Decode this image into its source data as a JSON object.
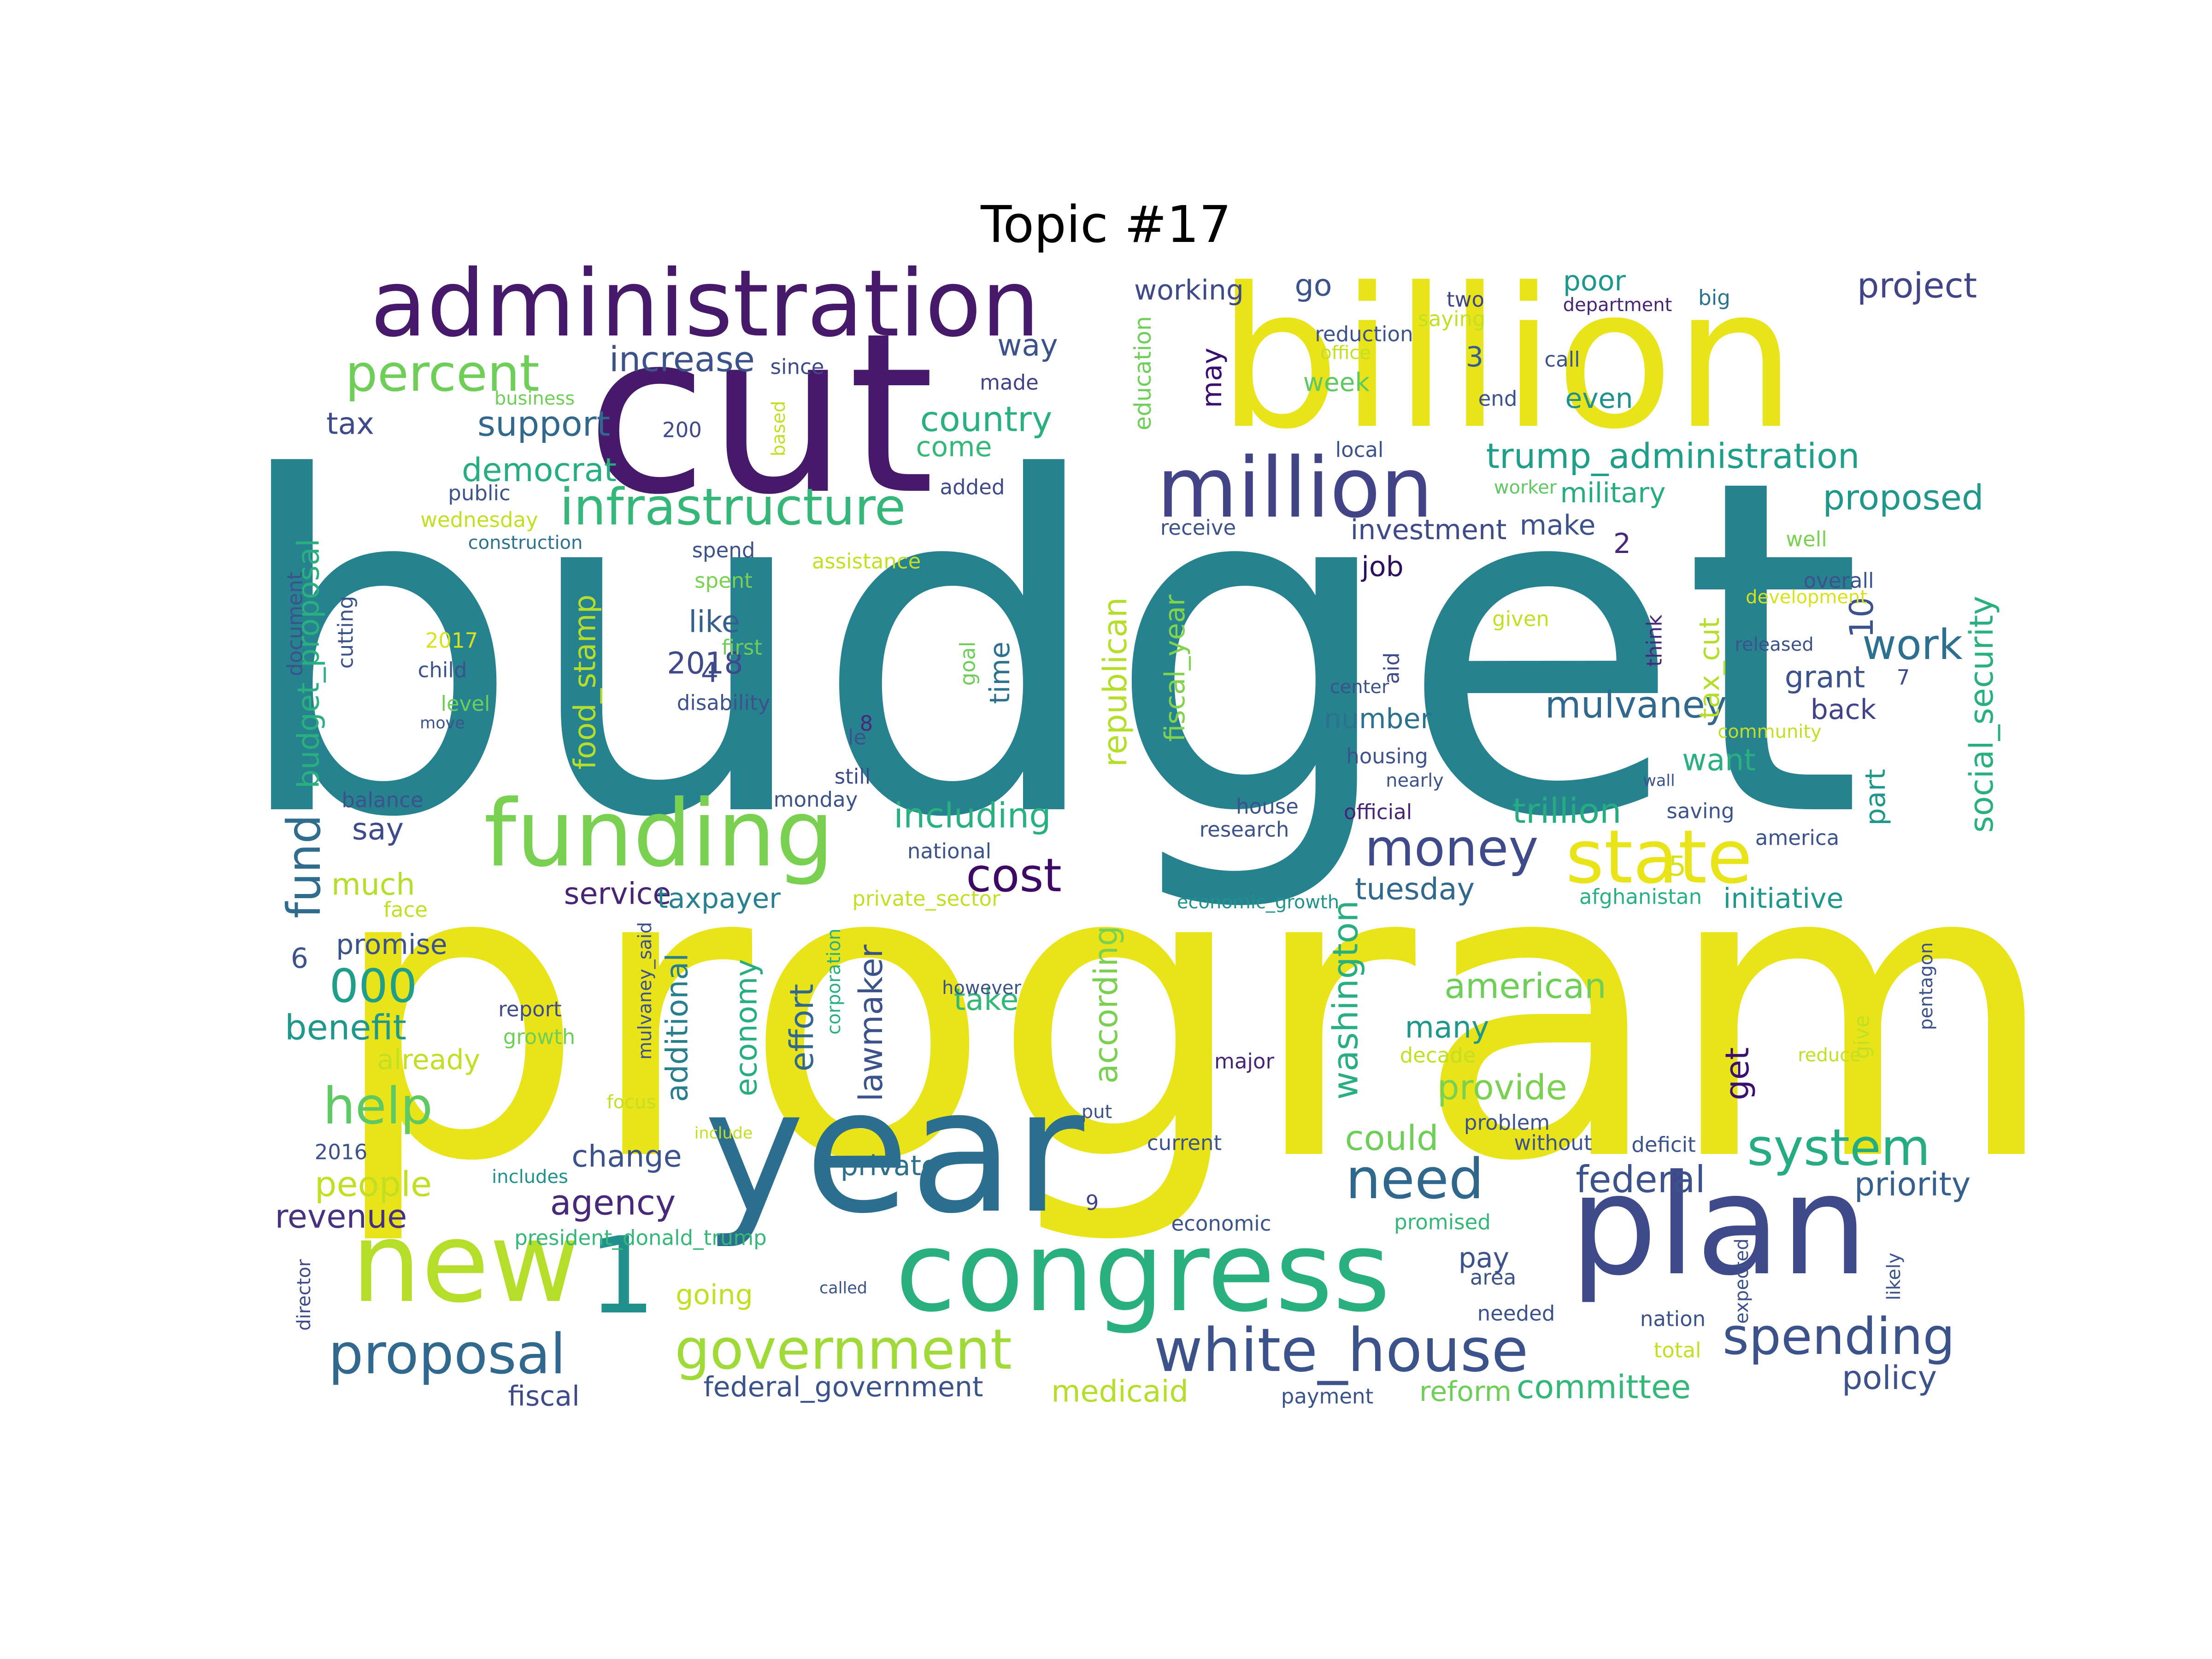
{
  "title": "Topic #17",
  "words": [
    {
      "t": "budget",
      "c": "#26828e"
    },
    {
      "t": "program",
      "c": "#e8e419"
    },
    {
      "t": "cut",
      "c": "#46196b"
    },
    {
      "t": "billion",
      "c": "#e8e419"
    },
    {
      "t": "year",
      "c": "#2c6e8e"
    },
    {
      "t": "plan",
      "c": "#3e4a89"
    },
    {
      "t": "congress",
      "c": "#2ab07f"
    },
    {
      "t": "new",
      "c": "#b5de2b"
    },
    {
      "t": "administration",
      "c": "#46196b"
    },
    {
      "t": "million",
      "c": "#414487"
    },
    {
      "t": "funding",
      "c": "#7ad151"
    },
    {
      "t": "state",
      "c": "#e8e419"
    },
    {
      "t": "infrastructure",
      "c": "#35b779"
    },
    {
      "t": "percent",
      "c": "#6ece58"
    },
    {
      "t": "1",
      "c": "#21918c"
    },
    {
      "t": "white_house",
      "c": "#3b528b"
    },
    {
      "t": "government",
      "c": "#a0da39"
    },
    {
      "t": "proposal",
      "c": "#31688e"
    },
    {
      "t": "need",
      "c": "#30678d"
    },
    {
      "t": "spending",
      "c": "#3b528b"
    },
    {
      "t": "system",
      "c": "#25ac82"
    },
    {
      "t": "money",
      "c": "#3e4a89"
    },
    {
      "t": "cost",
      "c": "#3d0965"
    },
    {
      "t": "help",
      "c": "#5ec962"
    },
    {
      "t": "000",
      "c": "#1f9e89"
    },
    {
      "t": "work",
      "c": "#2d6f8e"
    },
    {
      "t": "social_security",
      "c": "#2ab07f"
    },
    {
      "t": "trump_administration",
      "c": "#1f9e89"
    },
    {
      "t": "proposed",
      "c": "#1f988b"
    },
    {
      "t": "mulvaney",
      "c": "#31688e"
    },
    {
      "t": "fund",
      "c": "#2f6c8e"
    },
    {
      "t": "increase",
      "c": "#3b528b"
    },
    {
      "t": "support",
      "c": "#31688e"
    },
    {
      "t": "country",
      "c": "#2ab07f"
    },
    {
      "t": "project",
      "c": "#414487"
    },
    {
      "t": "federal",
      "c": "#3b528b"
    },
    {
      "t": "priority",
      "c": "#355f8d"
    },
    {
      "t": "policy",
      "c": "#3b528b"
    },
    {
      "t": "committee",
      "c": "#35b779"
    },
    {
      "t": "medicaid",
      "c": "#b5de2b"
    },
    {
      "t": "trillion",
      "c": "#25ac82"
    },
    {
      "t": "including",
      "c": "#2ab07f"
    },
    {
      "t": "american",
      "c": "#6ece58"
    },
    {
      "t": "provide",
      "c": "#7ad151"
    },
    {
      "t": "could",
      "c": "#6ece58"
    },
    {
      "t": "agency",
      "c": "#482878"
    },
    {
      "t": "people",
      "c": "#c2df23"
    },
    {
      "t": "revenue",
      "c": "#46327e"
    },
    {
      "t": "benefit",
      "c": "#1f988b"
    },
    {
      "t": "washington",
      "c": "#29af7f"
    },
    {
      "t": "lawmaker",
      "c": "#3b528b"
    },
    {
      "t": "according",
      "c": "#7ad151"
    },
    {
      "t": "effort",
      "c": "#31688e"
    },
    {
      "t": "economy",
      "c": "#27ad81"
    },
    {
      "t": "additional",
      "c": "#277f8e"
    },
    {
      "t": "republican",
      "c": "#b5de2b"
    },
    {
      "t": "fiscal_year",
      "c": "#81d34d"
    },
    {
      "t": "food_stamp",
      "c": "#b5de2b"
    },
    {
      "t": "budget_proposal",
      "c": "#2ab07f"
    },
    {
      "t": "tax_cut",
      "c": "#b5de2b"
    },
    {
      "t": "democrat",
      "c": "#27ad81"
    },
    {
      "t": "tax",
      "c": "#3e4a89"
    },
    {
      "t": "way",
      "c": "#3b528b"
    },
    {
      "t": "go",
      "c": "#3b528b"
    },
    {
      "t": "working",
      "c": "#3e4a89"
    },
    {
      "t": "poor",
      "c": "#1f988b"
    },
    {
      "t": "even",
      "c": "#21918c"
    },
    {
      "t": "military",
      "c": "#25ac82"
    },
    {
      "t": "make",
      "c": "#3b528b"
    },
    {
      "t": "investment",
      "c": "#3e4a89"
    },
    {
      "t": "job",
      "c": "#2c0f5d"
    },
    {
      "t": "like",
      "c": "#355f8d"
    },
    {
      "t": "time",
      "c": "#2c728e"
    },
    {
      "t": "2018",
      "c": "#3e4a89"
    },
    {
      "t": "number",
      "c": "#2c728e"
    },
    {
      "t": "grant",
      "c": "#3b528b"
    },
    {
      "t": "back",
      "c": "#404387"
    },
    {
      "t": "part",
      "c": "#1f988b"
    },
    {
      "t": "want",
      "c": "#2ab07f"
    },
    {
      "t": "say",
      "c": "#3e4a89"
    },
    {
      "t": "much",
      "c": "#b5de2b"
    },
    {
      "t": "service",
      "c": "#482475"
    },
    {
      "t": "taxpayer",
      "c": "#26828e"
    },
    {
      "t": "tuesday",
      "c": "#31688e"
    },
    {
      "t": "initiative",
      "c": "#1f988b"
    },
    {
      "t": "take",
      "c": "#35b779"
    },
    {
      "t": "many",
      "c": "#1f988b"
    },
    {
      "t": "get",
      "c": "#3b0f70"
    },
    {
      "t": "change",
      "c": "#3b528b"
    },
    {
      "t": "going",
      "c": "#c2df23"
    },
    {
      "t": "pay",
      "c": "#3b528b"
    },
    {
      "t": "fiscal",
      "c": "#3e4a89"
    },
    {
      "t": "federal_government",
      "c": "#3b528b"
    },
    {
      "t": "reform",
      "c": "#6ece58"
    },
    {
      "t": "promise",
      "c": "#3b528b"
    },
    {
      "t": "already",
      "c": "#c2df23"
    },
    {
      "t": "may",
      "c": "#3b0f70"
    },
    {
      "t": "week",
      "c": "#5ec962"
    },
    {
      "t": "come",
      "c": "#35b779"
    },
    {
      "t": "3",
      "c": "#355f8d"
    },
    {
      "t": "2",
      "c": "#482878"
    },
    {
      "t": "4",
      "c": "#3e4a89"
    },
    {
      "t": "10",
      "c": "#3b528b"
    },
    {
      "t": "5",
      "c": "#d8e219"
    },
    {
      "t": "6",
      "c": "#3b528b"
    },
    {
      "t": "7",
      "c": "#3e4a89"
    },
    {
      "t": "8",
      "c": "#482878"
    },
    {
      "t": "9",
      "c": "#404387"
    },
    {
      "t": "le",
      "c": "#3b528b"
    },
    {
      "t": "private",
      "c": "#2d708e"
    },
    {
      "t": "two",
      "c": "#404387"
    },
    {
      "t": "saying",
      "c": "#c2df23"
    },
    {
      "t": "department",
      "c": "#482475"
    },
    {
      "t": "big",
      "c": "#2c728e"
    },
    {
      "t": "reduction",
      "c": "#3b528b"
    },
    {
      "t": "office",
      "c": "#c2df23"
    },
    {
      "t": "call",
      "c": "#3b528b"
    },
    {
      "t": "end",
      "c": "#3b528b"
    },
    {
      "t": "education",
      "c": "#6ece58"
    },
    {
      "t": "made",
      "c": "#404387"
    },
    {
      "t": "since",
      "c": "#3e4a89"
    },
    {
      "t": "200",
      "c": "#3e4a89"
    },
    {
      "t": "based",
      "c": "#c2df23"
    },
    {
      "t": "business",
      "c": "#6ece58"
    },
    {
      "t": "local",
      "c": "#3b528b"
    },
    {
      "t": "added",
      "c": "#3e4a89"
    },
    {
      "t": "worker",
      "c": "#5ec962"
    },
    {
      "t": "public",
      "c": "#3b528b"
    },
    {
      "t": "wednesday",
      "c": "#c2df23"
    },
    {
      "t": "construction",
      "c": "#2c728e"
    },
    {
      "t": "document",
      "c": "#3b528b"
    },
    {
      "t": "cutting",
      "c": "#3b528b"
    },
    {
      "t": "receive",
      "c": "#3b528b"
    },
    {
      "t": "spend",
      "c": "#3b528b"
    },
    {
      "t": "spent",
      "c": "#7ad151"
    },
    {
      "t": "assistance",
      "c": "#c2df23"
    },
    {
      "t": "well",
      "c": "#7ad151"
    },
    {
      "t": "overall",
      "c": "#3b528b"
    },
    {
      "t": "development",
      "c": "#d8e219"
    },
    {
      "t": "think",
      "c": "#482878"
    },
    {
      "t": "given",
      "c": "#c2df23"
    },
    {
      "t": "released",
      "c": "#3b528b"
    },
    {
      "t": "aid",
      "c": "#3e4a89"
    },
    {
      "t": "center",
      "c": "#3b528b"
    },
    {
      "t": "2017",
      "c": "#d8e219"
    },
    {
      "t": "child",
      "c": "#3b528b"
    },
    {
      "t": "level",
      "c": "#6ece58"
    },
    {
      "t": "move",
      "c": "#3b528b"
    },
    {
      "t": "first",
      "c": "#6ece58"
    },
    {
      "t": "disability",
      "c": "#3b528b"
    },
    {
      "t": "goal",
      "c": "#6ece58"
    },
    {
      "t": "still",
      "c": "#3e4a89"
    },
    {
      "t": "community",
      "c": "#c2df23"
    },
    {
      "t": "wall",
      "c": "#3b528b"
    },
    {
      "t": "housing",
      "c": "#3b528b"
    },
    {
      "t": "nearly",
      "c": "#3b528b"
    },
    {
      "t": "balance",
      "c": "#3b528b"
    },
    {
      "t": "monday",
      "c": "#3b528b"
    },
    {
      "t": "house",
      "c": "#3b528b"
    },
    {
      "t": "official",
      "c": "#482475"
    },
    {
      "t": "saving",
      "c": "#3b528b"
    },
    {
      "t": "america",
      "c": "#3b528b"
    },
    {
      "t": "research",
      "c": "#3b528b"
    },
    {
      "t": "national",
      "c": "#3b528b"
    },
    {
      "t": "face",
      "c": "#c2df23"
    },
    {
      "t": "private_sector",
      "c": "#c2df23"
    },
    {
      "t": "economic_growth",
      "c": "#21918c"
    },
    {
      "t": "afghanistan",
      "c": "#2ab07f"
    },
    {
      "t": "mulvaney_said",
      "c": "#3b528b"
    },
    {
      "t": "corporation",
      "c": "#2ab07f"
    },
    {
      "t": "pentagon",
      "c": "#3b528b"
    },
    {
      "t": "give",
      "c": "#c2df23"
    },
    {
      "t": "report",
      "c": "#3e4a89"
    },
    {
      "t": "growth",
      "c": "#6ece58"
    },
    {
      "t": "however",
      "c": "#3b528b"
    },
    {
      "t": "major",
      "c": "#482475"
    },
    {
      "t": "decade",
      "c": "#c2df23"
    },
    {
      "t": "reduce",
      "c": "#c2df23"
    },
    {
      "t": "put",
      "c": "#3b528b"
    },
    {
      "t": "focus",
      "c": "#c2df23"
    },
    {
      "t": "include",
      "c": "#c2df23"
    },
    {
      "t": "problem",
      "c": "#3b528b"
    },
    {
      "t": "without",
      "c": "#3b528b"
    },
    {
      "t": "deficit",
      "c": "#3b528b"
    },
    {
      "t": "current",
      "c": "#3b528b"
    },
    {
      "t": "2016",
      "c": "#3b528b"
    },
    {
      "t": "includes",
      "c": "#21918c"
    },
    {
      "t": "president_donald_trump",
      "c": "#35b779"
    },
    {
      "t": "economic",
      "c": "#3b528b"
    },
    {
      "t": "promised",
      "c": "#35b779"
    },
    {
      "t": "expected",
      "c": "#3b528b"
    },
    {
      "t": "likely",
      "c": "#3b528b"
    },
    {
      "t": "area",
      "c": "#3b528b"
    },
    {
      "t": "needed",
      "c": "#3b528b"
    },
    {
      "t": "nation",
      "c": "#3b528b"
    },
    {
      "t": "total",
      "c": "#c2df23"
    },
    {
      "t": "called",
      "c": "#3b528b"
    },
    {
      "t": "director",
      "c": "#3e4a89"
    },
    {
      "t": "payment",
      "c": "#3b528b"
    }
  ]
}
